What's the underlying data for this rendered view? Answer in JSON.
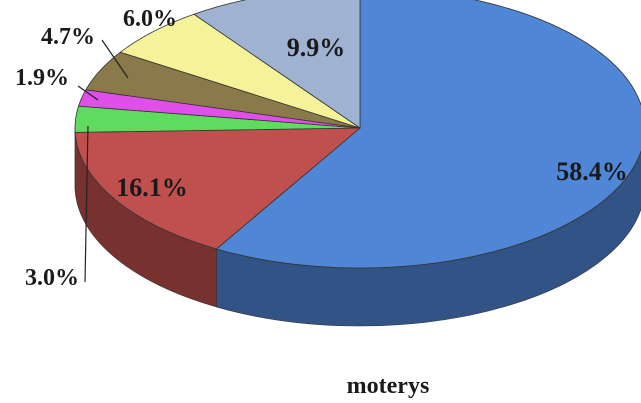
{
  "chart_data": {
    "type": "pie",
    "title": "moterys",
    "slices": [
      {
        "label": "58.4%",
        "value": 58.4,
        "color": "#4f86d6"
      },
      {
        "label": "16.1%",
        "value": 16.1,
        "color": "#c0504d"
      },
      {
        "label": "3.0%",
        "value": 3.0,
        "color": "#5fdc5f"
      },
      {
        "label": "1.9%",
        "value": 1.9,
        "color": "#e04fe8"
      },
      {
        "label": "4.7%",
        "value": 4.7,
        "color": "#8a7a4a"
      },
      {
        "label": "6.0%",
        "value": 6.0,
        "color": "#f6f29a"
      },
      {
        "label": "9.9%",
        "value": 9.9,
        "color": "#9fb2d2"
      }
    ]
  }
}
